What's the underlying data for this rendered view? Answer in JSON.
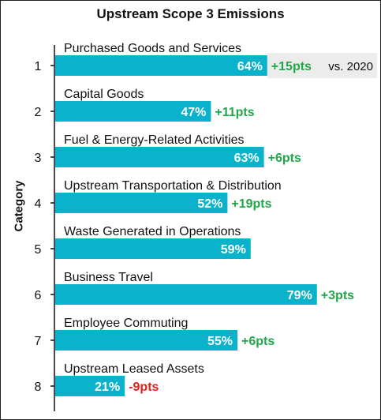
{
  "chart_data": {
    "type": "bar",
    "orientation": "horizontal",
    "title": "Upstream Scope 3 Emissions",
    "ylabel": "Category",
    "xlim": [
      0,
      100
    ],
    "categories": [
      "1",
      "2",
      "3",
      "4",
      "5",
      "6",
      "7",
      "8"
    ],
    "category_names": [
      "Purchased Goods and Services",
      "Capital Goods",
      "Fuel & Energy-Related Activities",
      "Upstream Transportation & Distribution",
      "Waste Generated in Operations",
      "Business Travel",
      "Employee Commuting",
      "Upstream Leased Assets"
    ],
    "values": [
      64,
      47,
      63,
      52,
      59,
      79,
      55,
      21
    ],
    "value_labels": [
      "64%",
      "47%",
      "63%",
      "52%",
      "59%",
      "79%",
      "55%",
      "21%"
    ],
    "change_vs_2020": [
      "+15pts",
      "+11pts",
      "+6pts",
      "+19pts",
      "",
      "+3pts",
      "+6pts",
      "-9pts"
    ],
    "comparison_note": "vs. 2020",
    "colors": {
      "bar": "#0AB3CB",
      "positive": "#1FA84A",
      "negative": "#E0201B",
      "highlight_band": "#ECECEC"
    },
    "grid": false,
    "legend": "none"
  }
}
